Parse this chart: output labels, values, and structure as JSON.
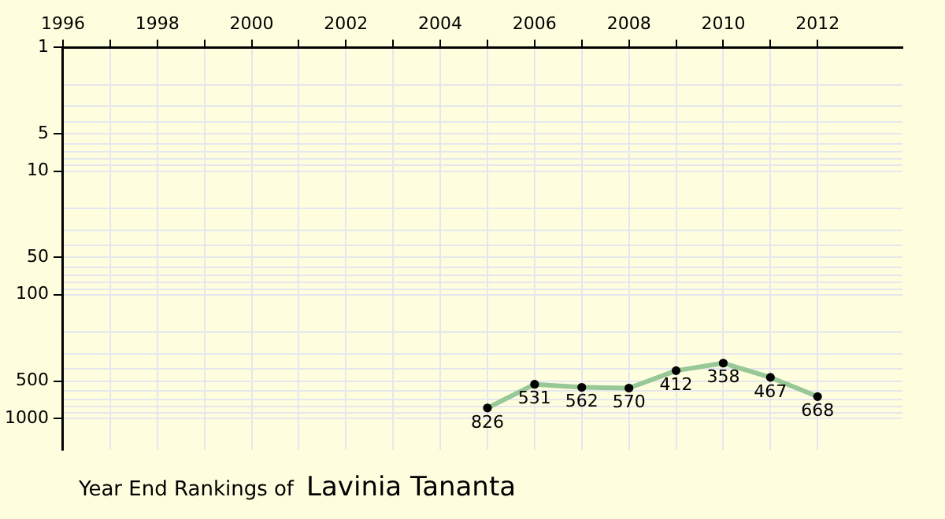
{
  "chart_data": {
    "type": "line",
    "title": "Year End Rankings of",
    "subtitle": "Lavinia Tananta",
    "x": [
      2005,
      2006,
      2007,
      2008,
      2009,
      2010,
      2011,
      2012
    ],
    "series": [
      {
        "color": "#98c898",
        "values": [
          826,
          531,
          562,
          570,
          412,
          358,
          467,
          668
        ]
      }
    ],
    "data_labels": true,
    "marker": "circle",
    "grid": true,
    "log": "y",
    "legend": false,
    "xlim": [
      1996,
      2013.8
    ],
    "xticks": [
      1996,
      {
        "value": 1997,
        "label": null
      },
      1998,
      {
        "value": 1999,
        "label": null
      },
      2000,
      {
        "value": 2001,
        "label": null
      },
      2002,
      {
        "value": 2003,
        "label": null
      },
      2004,
      {
        "value": 2005,
        "label": null
      },
      2006,
      {
        "value": 2007,
        "label": null
      },
      2008,
      {
        "value": 2009,
        "label": null
      },
      2010,
      {
        "value": 2011,
        "label": null
      },
      2012
    ],
    "ylim": [
      1800,
      1
    ],
    "yticks": [
      1,
      {
        "value": 2,
        "label": null
      },
      {
        "value": 3,
        "label": null
      },
      {
        "value": 4,
        "label": null
      },
      5,
      {
        "value": 6,
        "label": null
      },
      {
        "value": 7,
        "label": null
      },
      {
        "value": 8,
        "label": null
      },
      {
        "value": 9,
        "label": null
      },
      10,
      {
        "value": 20,
        "label": null
      },
      {
        "value": 30,
        "label": null
      },
      {
        "value": 40,
        "label": null
      },
      50,
      {
        "value": 60,
        "label": null
      },
      {
        "value": 70,
        "label": null
      },
      {
        "value": 80,
        "label": null
      },
      {
        "value": 90,
        "label": null
      },
      100,
      {
        "value": 200,
        "label": null
      },
      {
        "value": 300,
        "label": null
      },
      {
        "value": 400,
        "label": null
      },
      500,
      {
        "value": 600,
        "label": null
      },
      {
        "value": 700,
        "label": null
      },
      {
        "value": 800,
        "label": null
      },
      {
        "value": 900,
        "label": null
      },
      1000
    ]
  }
}
